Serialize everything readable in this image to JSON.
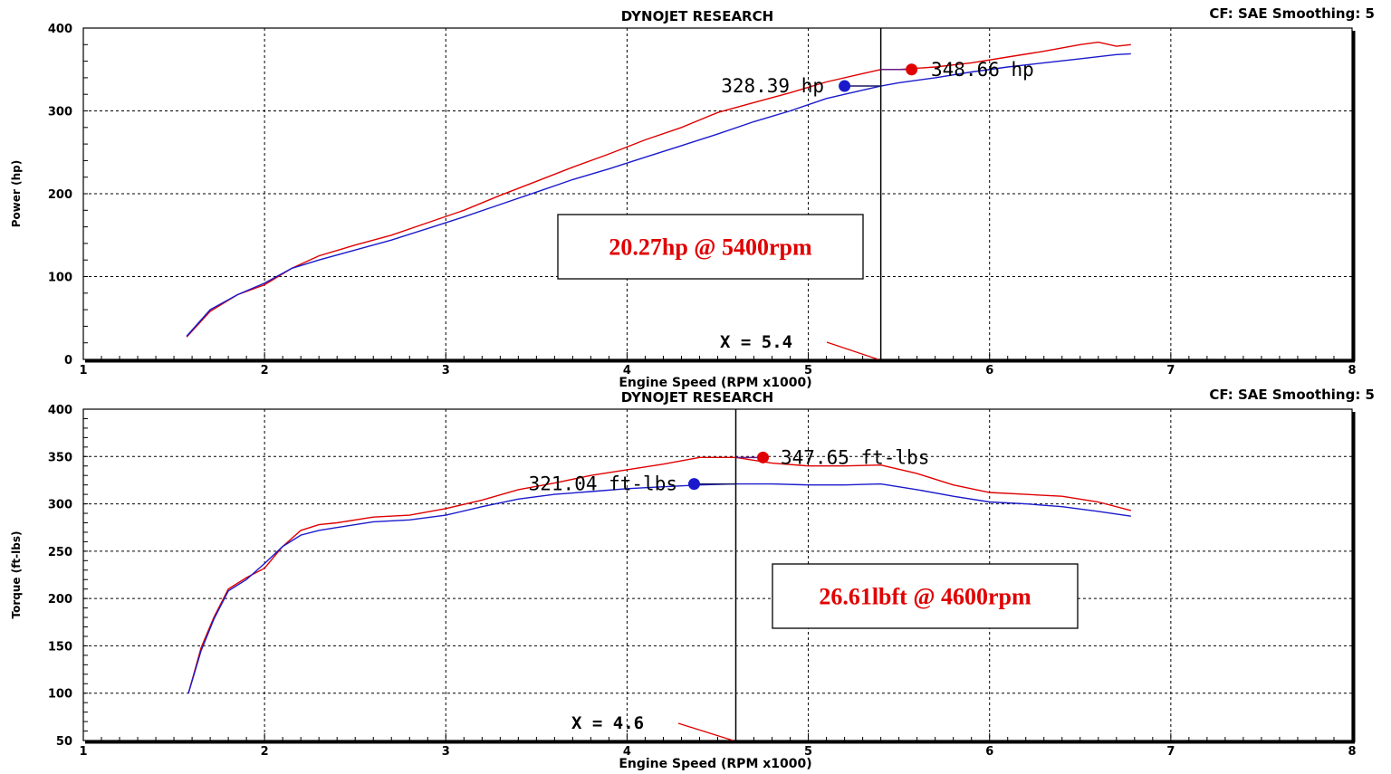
{
  "colors": {
    "run_red": "#e00000",
    "run_blue": "#1a1acc",
    "annotation_red": "#e00000"
  },
  "chart_data": [
    {
      "type": "line",
      "title": "DYNOJET RESEARCH",
      "header_right": "CF: SAE   Smoothing: 5",
      "xlabel": "Engine Speed (RPM x1000)",
      "ylabel": "Power (hp)",
      "xlim": [
        1,
        8
      ],
      "ylim": [
        0,
        400
      ],
      "x_ticks": [
        "1",
        "2",
        "3",
        "4",
        "5",
        "6",
        "7",
        "8"
      ],
      "y_ticks": [
        "0",
        "100",
        "200",
        "300",
        "400"
      ],
      "grid": true,
      "series": [
        {
          "color": "#e00000",
          "x": [
            1.57,
            1.7,
            1.85,
            2.0,
            2.15,
            2.3,
            2.5,
            2.7,
            2.9,
            3.1,
            3.3,
            3.5,
            3.7,
            3.9,
            4.1,
            4.3,
            4.5,
            4.7,
            4.9,
            5.1,
            5.3,
            5.4,
            5.5,
            5.7,
            5.9,
            6.1,
            6.3,
            6.5,
            6.6,
            6.7,
            6.78
          ],
          "y": [
            27,
            58,
            78,
            90,
            110,
            125,
            138,
            150,
            165,
            180,
            198,
            215,
            232,
            248,
            265,
            280,
            298,
            310,
            322,
            335,
            345,
            350,
            350,
            353,
            358,
            365,
            372,
            380,
            383,
            378,
            380
          ]
        },
        {
          "color": "#1a1acc",
          "x": [
            1.57,
            1.7,
            1.85,
            2.0,
            2.15,
            2.3,
            2.5,
            2.7,
            2.9,
            3.1,
            3.3,
            3.5,
            3.7,
            3.9,
            4.1,
            4.3,
            4.5,
            4.7,
            4.9,
            5.1,
            5.3,
            5.4,
            5.5,
            5.7,
            5.9,
            6.1,
            6.3,
            6.5,
            6.7,
            6.78
          ],
          "y": [
            28,
            60,
            78,
            92,
            110,
            120,
            132,
            144,
            158,
            172,
            187,
            202,
            217,
            230,
            244,
            258,
            272,
            287,
            300,
            315,
            325,
            330,
            334,
            340,
            347,
            353,
            358,
            363,
            368,
            369
          ]
        }
      ],
      "cursor_x": 5.4,
      "cursor_label": "X = 5.4",
      "peak_red_label": "348.66 hp",
      "peak_blue_label": "328.39 hp",
      "annotation": "20.27hp @ 5400rpm"
    },
    {
      "type": "line",
      "title": "DYNOJET RESEARCH",
      "header_right": "CF: SAE   Smoothing: 5",
      "xlabel": "Engine Speed (RPM x1000)",
      "ylabel": "Torque (ft-lbs)",
      "xlim": [
        1,
        8
      ],
      "ylim": [
        50,
        400
      ],
      "x_ticks": [
        "1",
        "2",
        "3",
        "4",
        "5",
        "6",
        "7",
        "8"
      ],
      "y_ticks": [
        "50",
        "100",
        "150",
        "200",
        "250",
        "300",
        "350",
        "400"
      ],
      "grid": true,
      "series": [
        {
          "color": "#e00000",
          "x": [
            1.58,
            1.65,
            1.72,
            1.8,
            1.9,
            2.0,
            2.1,
            2.2,
            2.3,
            2.4,
            2.6,
            2.8,
            3.0,
            3.2,
            3.4,
            3.6,
            3.8,
            4.0,
            4.2,
            4.4,
            4.6,
            4.8,
            5.0,
            5.2,
            5.4,
            5.6,
            5.8,
            6.0,
            6.2,
            6.4,
            6.6,
            6.78
          ],
          "y": [
            100,
            148,
            180,
            210,
            222,
            232,
            255,
            272,
            278,
            280,
            286,
            288,
            295,
            304,
            315,
            322,
            330,
            336,
            342,
            349,
            349,
            343,
            340,
            340,
            341,
            332,
            320,
            312,
            310,
            308,
            302,
            293
          ]
        },
        {
          "color": "#1a1acc",
          "x": [
            1.58,
            1.65,
            1.72,
            1.8,
            1.9,
            2.0,
            2.1,
            2.2,
            2.3,
            2.4,
            2.6,
            2.8,
            3.0,
            3.2,
            3.4,
            3.6,
            3.8,
            4.0,
            4.2,
            4.4,
            4.6,
            4.8,
            5.0,
            5.2,
            5.4,
            5.6,
            5.8,
            6.0,
            6.2,
            6.4,
            6.6,
            6.78
          ],
          "y": [
            100,
            145,
            178,
            208,
            220,
            237,
            255,
            267,
            272,
            275,
            281,
            283,
            288,
            297,
            305,
            310,
            313,
            316,
            318,
            320,
            321,
            321,
            320,
            320,
            321,
            315,
            308,
            302,
            300,
            297,
            292,
            287
          ]
        }
      ],
      "cursor_x": 4.6,
      "cursor_label": "X = 4.6",
      "peak_red_label": "347.65 ft-lbs",
      "peak_blue_label": "321.04 ft-lbs",
      "annotation": "26.61lbft @ 4600rpm"
    }
  ]
}
